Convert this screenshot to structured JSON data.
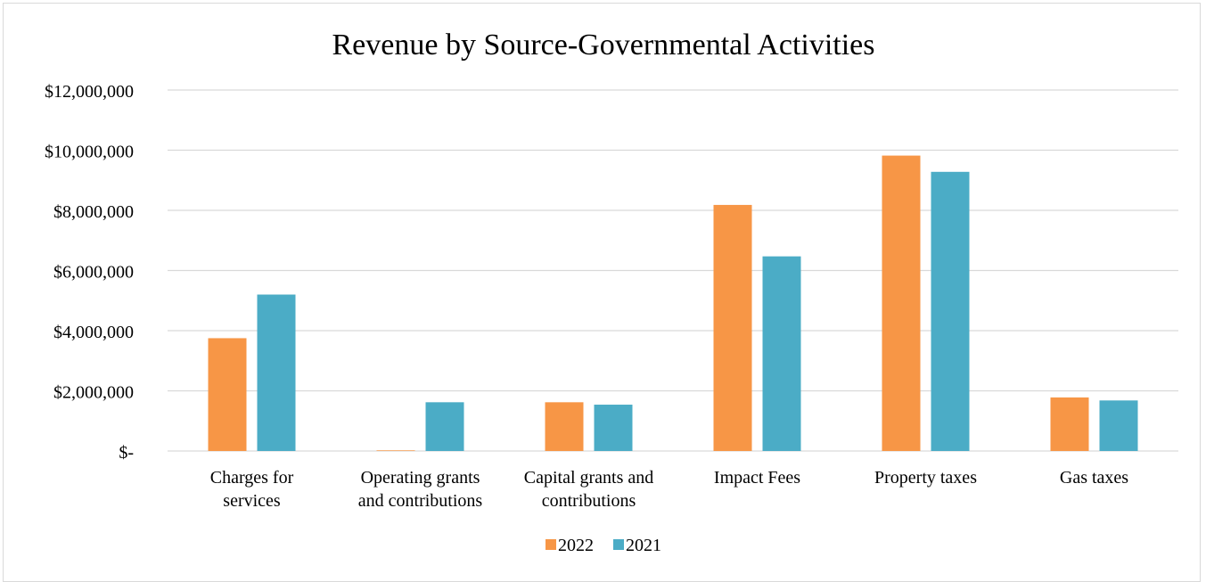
{
  "chart_data": {
    "type": "bar",
    "title": "Revenue by Source-Governmental Activities",
    "xlabel": "",
    "ylabel": "",
    "categories": [
      [
        "Charges for",
        "services"
      ],
      [
        "Operating grants",
        "and contributions"
      ],
      [
        "Capital grants and",
        "contributions"
      ],
      [
        "Impact Fees"
      ],
      [
        "Property taxes"
      ],
      [
        "Gas taxes"
      ]
    ],
    "series": [
      {
        "name": "2022",
        "color": "#f79646",
        "values": [
          3750000,
          20000,
          1620000,
          8180000,
          9820000,
          1780000
        ]
      },
      {
        "name": "2021",
        "color": "#4bacc6",
        "values": [
          5200000,
          1620000,
          1540000,
          6470000,
          9280000,
          1680000
        ]
      }
    ],
    "ylim": [
      0,
      12000000
    ],
    "yticks": [
      0,
      2000000,
      4000000,
      6000000,
      8000000,
      10000000,
      12000000
    ],
    "ytick_labels": [
      "$-",
      "$2,000,000",
      "$4,000,000",
      "$6,000,000",
      "$8,000,000",
      "$10,000,000",
      "$12,000,000"
    ],
    "grid": true,
    "legend": "bottom"
  }
}
